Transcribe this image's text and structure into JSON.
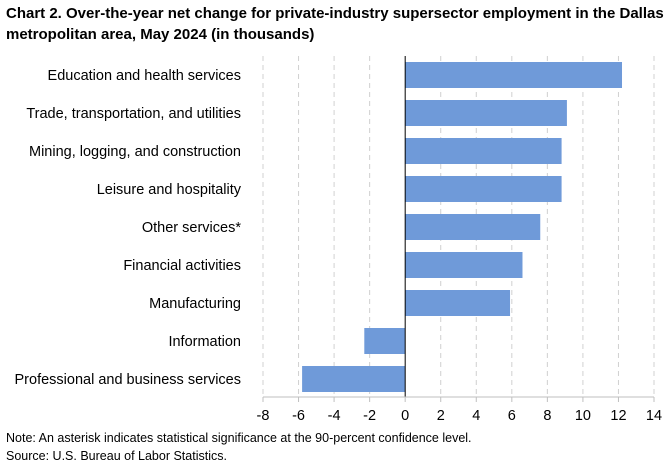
{
  "chart_data": {
    "type": "bar",
    "orientation": "horizontal",
    "title": "Chart 2. Over-the-year net change for private-industry supersector employment in the Dallas metropolitan area, May 2024 (in thousands)",
    "categories": [
      "Education and health services",
      "Trade, transportation, and utilities",
      "Mining, logging, and construction",
      "Leisure and hospitality",
      "Other services*",
      "Financial activities",
      "Manufacturing",
      "Information",
      "Professional and business services"
    ],
    "values": [
      12.2,
      9.1,
      8.8,
      8.8,
      7.6,
      6.6,
      5.9,
      -2.3,
      -5.8
    ],
    "xlim": [
      -8,
      14
    ],
    "xticks": [
      -8,
      -6,
      -4,
      -2,
      0,
      2,
      4,
      6,
      8,
      10,
      12,
      14
    ],
    "xlabel": "",
    "ylabel": "",
    "gridlines": "vertical dashed",
    "bar_color": "#6F9AD9"
  },
  "notes": {
    "note": "Note: An asterisk indicates statistical significance at the 90-percent confidence level.",
    "source": "Source: U.S. Bureau of Labor Statistics."
  }
}
